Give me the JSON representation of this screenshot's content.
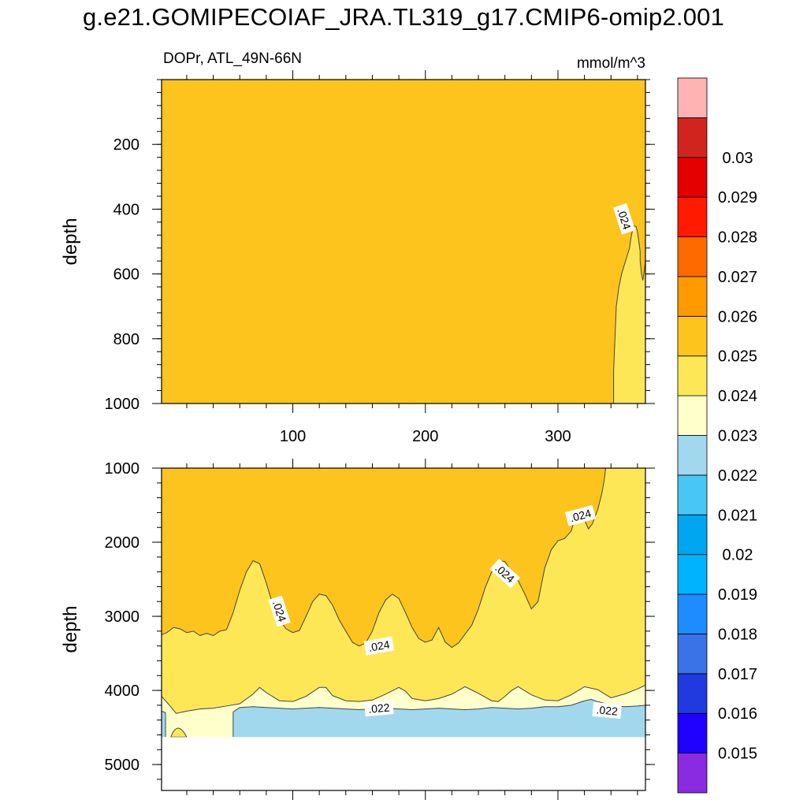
{
  "title": "g.e21.GOMIPECOIAF_JRA.TL319_g17.CMIP6-omip2.001",
  "panel_left_label": "DOPr, ATL_49N-66N",
  "units_label": "mmol/m^3",
  "colors": {
    "fill_0024_0025": "#fcc41c",
    "fill_0023_0024": "#fde757",
    "fill_0022_0023": "#ffffcc",
    "fill_0021_0022": "#a2d8ee",
    "missing": "#ffffff",
    "contour_line": "#444444"
  },
  "chart_data": [
    {
      "type": "heatmap",
      "panel": "upper",
      "xlabel": "",
      "ylabel": "depth",
      "xlim": [
        1,
        366
      ],
      "ylim": [
        1000,
        0
      ],
      "x_ticks": [
        100,
        200,
        300
      ],
      "x_tick_labels": [
        "100",
        "200",
        "300"
      ],
      "y_ticks": [
        200,
        400,
        600,
        800,
        1000
      ],
      "y_tick_labels": [
        "200",
        "400",
        "600",
        "800",
        "1000"
      ],
      "background_band": [
        0.024,
        0.025
      ],
      "contour_0024_boundary": [
        [
          1000,
          342
        ],
        [
          900,
          342
        ],
        [
          800,
          343
        ],
        [
          700,
          344
        ],
        [
          640,
          346
        ],
        [
          600,
          348
        ],
        [
          560,
          351
        ],
        [
          520,
          354
        ],
        [
          490,
          355
        ],
        [
          470,
          356
        ],
        [
          450,
          357
        ],
        [
          455,
          359
        ],
        [
          470,
          360
        ],
        [
          500,
          361
        ],
        [
          530,
          362
        ],
        [
          560,
          362
        ],
        [
          600,
          363
        ],
        [
          620,
          364
        ],
        [
          595,
          365
        ],
        [
          560,
          366
        ],
        [
          500,
          367
        ],
        [
          480,
          368
        ]
      ],
      "contour_labels": [
        {
          "text": ".024",
          "x": 350,
          "depth": 430,
          "angle": 72
        }
      ]
    },
    {
      "type": "heatmap",
      "panel": "lower",
      "xlabel": "",
      "ylabel": "depth",
      "xlim": [
        1,
        366
      ],
      "ylim": [
        5350,
        1000
      ],
      "missing_below_depth": 4630,
      "y_ticks": [
        1000,
        2000,
        3000,
        4000,
        5000
      ],
      "y_tick_labels": [
        "1000",
        "2000",
        "3000",
        "4000",
        "5000"
      ],
      "x_ticks": [
        100,
        200,
        300
      ],
      "x_tick_labels": [
        "",
        "",
        ""
      ],
      "contour_0024": [
        [
          1,
          3250
        ],
        [
          5,
          3220
        ],
        [
          10,
          3150
        ],
        [
          15,
          3170
        ],
        [
          20,
          3220
        ],
        [
          25,
          3200
        ],
        [
          30,
          3260
        ],
        [
          35,
          3230
        ],
        [
          40,
          3260
        ],
        [
          45,
          3200
        ],
        [
          50,
          3180
        ],
        [
          55,
          2950
        ],
        [
          60,
          2650
        ],
        [
          65,
          2400
        ],
        [
          70,
          2250
        ],
        [
          75,
          2290
        ],
        [
          80,
          2550
        ],
        [
          85,
          2850
        ],
        [
          90,
          3050
        ],
        [
          95,
          3170
        ],
        [
          100,
          3220
        ],
        [
          105,
          3190
        ],
        [
          110,
          3000
        ],
        [
          115,
          2800
        ],
        [
          120,
          2700
        ],
        [
          125,
          2720
        ],
        [
          130,
          2850
        ],
        [
          135,
          3050
        ],
        [
          140,
          3200
        ],
        [
          145,
          3350
        ],
        [
          150,
          3400
        ],
        [
          155,
          3360
        ],
        [
          160,
          3200
        ],
        [
          165,
          2950
        ],
        [
          170,
          2780
        ],
        [
          175,
          2700
        ],
        [
          180,
          2760
        ],
        [
          185,
          2950
        ],
        [
          190,
          3150
        ],
        [
          195,
          3300
        ],
        [
          200,
          3350
        ],
        [
          205,
          3320
        ],
        [
          210,
          3150
        ],
        [
          215,
          3350
        ],
        [
          220,
          3420
        ],
        [
          225,
          3360
        ],
        [
          230,
          3240
        ],
        [
          235,
          3120
        ],
        [
          240,
          2900
        ],
        [
          245,
          2620
        ],
        [
          250,
          2400
        ],
        [
          255,
          2250
        ],
        [
          260,
          2260
        ],
        [
          265,
          2400
        ],
        [
          270,
          2520
        ],
        [
          275,
          2700
        ],
        [
          280,
          2900
        ],
        [
          285,
          2800
        ],
        [
          290,
          2350
        ],
        [
          295,
          2100
        ],
        [
          300,
          1980
        ],
        [
          305,
          1950
        ],
        [
          310,
          1850
        ],
        [
          313,
          1660
        ],
        [
          317,
          1560
        ],
        [
          320,
          1700
        ],
        [
          323,
          1820
        ],
        [
          326,
          1750
        ],
        [
          330,
          1560
        ],
        [
          333,
          1350
        ],
        [
          335,
          1150
        ],
        [
          336,
          1000
        ]
      ],
      "contour_0023": [
        [
          1,
          4080
        ],
        [
          6,
          4180
        ],
        [
          12,
          4310
        ],
        [
          20,
          4280
        ],
        [
          30,
          4250
        ],
        [
          40,
          4240
        ],
        [
          50,
          4210
        ],
        [
          60,
          4180
        ],
        [
          70,
          4050
        ],
        [
          75,
          3960
        ],
        [
          80,
          4030
        ],
        [
          90,
          4140
        ],
        [
          100,
          4150
        ],
        [
          110,
          4080
        ],
        [
          120,
          3960
        ],
        [
          125,
          3960
        ],
        [
          130,
          4070
        ],
        [
          140,
          4140
        ],
        [
          150,
          4150
        ],
        [
          160,
          4130
        ],
        [
          170,
          4050
        ],
        [
          180,
          3960
        ],
        [
          185,
          4010
        ],
        [
          190,
          4110
        ],
        [
          200,
          4140
        ],
        [
          210,
          4110
        ],
        [
          220,
          4050
        ],
        [
          230,
          3950
        ],
        [
          240,
          4040
        ],
        [
          250,
          4140
        ],
        [
          255,
          4150
        ],
        [
          260,
          4080
        ],
        [
          265,
          4000
        ],
        [
          270,
          3950
        ],
        [
          280,
          4060
        ],
        [
          290,
          4130
        ],
        [
          300,
          4140
        ],
        [
          310,
          4060
        ],
        [
          320,
          3950
        ],
        [
          330,
          3990
        ],
        [
          340,
          4100
        ],
        [
          350,
          4050
        ],
        [
          360,
          3980
        ],
        [
          366,
          3930
        ]
      ],
      "contour_0022": [
        [
          55,
          4630
        ],
        [
          55,
          4290
        ],
        [
          60,
          4230
        ],
        [
          70,
          4220
        ],
        [
          80,
          4230
        ],
        [
          90,
          4240
        ],
        [
          100,
          4250
        ],
        [
          110,
          4240
        ],
        [
          120,
          4230
        ],
        [
          130,
          4240
        ],
        [
          140,
          4250
        ],
        [
          150,
          4260
        ],
        [
          160,
          4250
        ],
        [
          170,
          4240
        ],
        [
          180,
          4250
        ],
        [
          190,
          4260
        ],
        [
          200,
          4250
        ],
        [
          210,
          4240
        ],
        [
          220,
          4250
        ],
        [
          230,
          4260
        ],
        [
          240,
          4250
        ],
        [
          250,
          4230
        ],
        [
          260,
          4240
        ],
        [
          270,
          4250
        ],
        [
          280,
          4240
        ],
        [
          290,
          4220
        ],
        [
          300,
          4220
        ],
        [
          310,
          4200
        ],
        [
          320,
          4140
        ],
        [
          325,
          4120
        ],
        [
          330,
          4150
        ],
        [
          340,
          4200
        ],
        [
          350,
          4220
        ],
        [
          360,
          4210
        ],
        [
          366,
          4200
        ]
      ],
      "contour_labels": [
        {
          "text": ".024",
          "x": 90,
          "depth": 2930,
          "angle": 72
        },
        {
          "text": ".024",
          "x": 165,
          "depth": 3400,
          "angle": -10
        },
        {
          "text": ".024",
          "x": 260,
          "depth": 2420,
          "angle": 42
        },
        {
          "text": ".024",
          "x": 317,
          "depth": 1640,
          "angle": -15
        },
        {
          "text": ".022",
          "x": 165,
          "depth": 4240,
          "angle": -5
        },
        {
          "text": ".022",
          "x": 337,
          "depth": 4270,
          "angle": 5
        }
      ]
    }
  ],
  "colorbar": {
    "levels": [
      "0.015",
      "0.016",
      "0.017",
      "0.018",
      "0.019",
      "0.02",
      "0.021",
      "0.022",
      "0.023",
      "0.024",
      "0.025",
      "0.026",
      "0.027",
      "0.028",
      "0.029",
      "0.03"
    ],
    "colors": [
      "#8a2be2",
      "#2000ff",
      "#203ae0",
      "#3a72e8",
      "#1e8cff",
      "#00b3ff",
      "#00a6f0",
      "#48c6f5",
      "#a2d8ee",
      "#ffffcc",
      "#fde757",
      "#fcc41c",
      "#ff9b00",
      "#ff6a00",
      "#ff1a00",
      "#e50000",
      "#d2241f",
      "#ffb3b3"
    ]
  }
}
